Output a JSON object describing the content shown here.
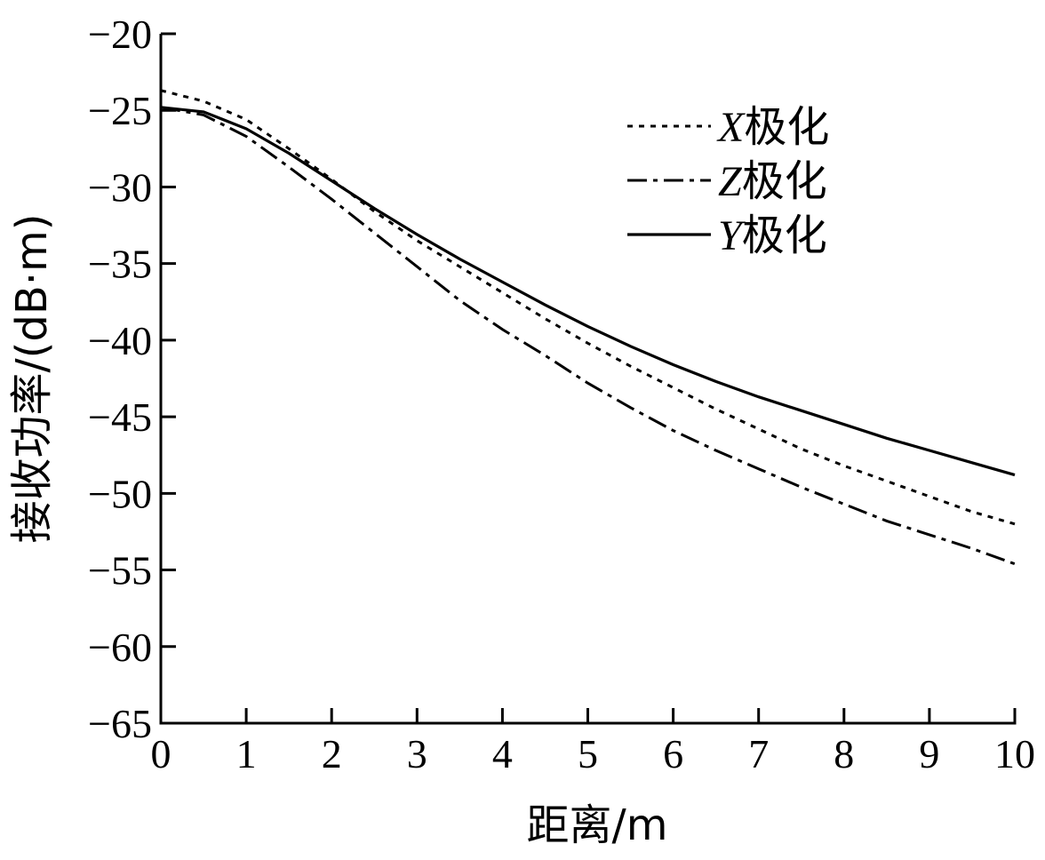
{
  "chart_data": {
    "type": "line",
    "title": "",
    "xlabel": "距离/m",
    "ylabel": "接收功率/(dB·m)",
    "xlim": [
      0,
      10
    ],
    "ylim": [
      -65,
      -20
    ],
    "xticks": [
      "0",
      "1",
      "2",
      "3",
      "4",
      "5",
      "6",
      "7",
      "8",
      "9",
      "10"
    ],
    "yticks": [
      "−20",
      "−25",
      "−30",
      "−35",
      "−40",
      "−45",
      "−50",
      "−55",
      "−60",
      "−65"
    ],
    "grid": false,
    "legend_position": "top-right",
    "x": [
      0,
      0.5,
      1,
      1.5,
      2,
      2.5,
      3,
      3.5,
      4,
      4.5,
      5,
      5.5,
      6,
      6.5,
      7,
      7.5,
      8,
      8.5,
      9,
      9.5,
      10
    ],
    "series": [
      {
        "name_var": "X",
        "name_suffix": "极化",
        "style": "dotted",
        "values": [
          -23.7,
          -24.4,
          -25.6,
          -27.5,
          -29.5,
          -31.6,
          -33.5,
          -35.2,
          -36.9,
          -38.6,
          -40.2,
          -41.7,
          -43.1,
          -44.5,
          -45.8,
          -47.1,
          -48.2,
          -49.2,
          -50.2,
          -51.2,
          -52.0
        ]
      },
      {
        "name_var": "Z",
        "name_suffix": "极化",
        "style": "dashdot",
        "values": [
          -24.8,
          -25.3,
          -26.7,
          -28.7,
          -30.8,
          -33.0,
          -35.2,
          -37.4,
          -39.3,
          -41.0,
          -42.8,
          -44.4,
          -45.9,
          -47.2,
          -48.4,
          -49.6,
          -50.7,
          -51.8,
          -52.7,
          -53.6,
          -54.6
        ]
      },
      {
        "name_var": "Y",
        "name_suffix": "极化",
        "style": "solid",
        "values": [
          -24.8,
          -25.1,
          -26.2,
          -27.8,
          -29.6,
          -31.4,
          -33.1,
          -34.7,
          -36.2,
          -37.7,
          -39.1,
          -40.4,
          -41.6,
          -42.7,
          -43.7,
          -44.6,
          -45.5,
          -46.4,
          -47.2,
          -48.0,
          -48.8
        ]
      }
    ]
  }
}
